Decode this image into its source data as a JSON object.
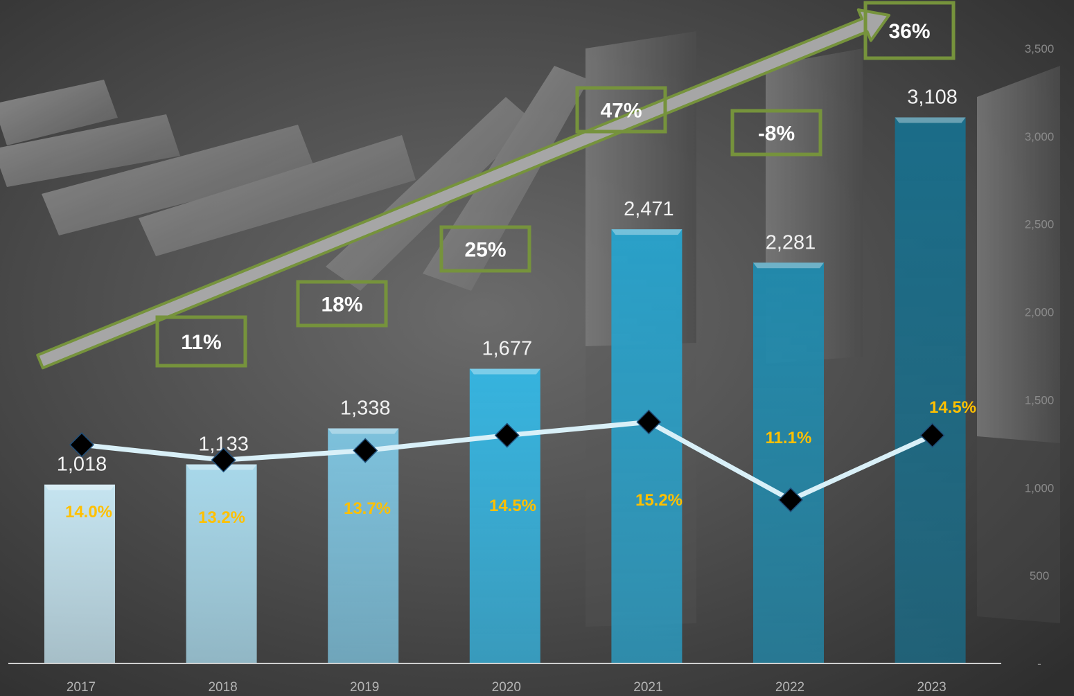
{
  "chart_data": {
    "type": "bar",
    "categories": [
      "2017",
      "2018",
      "2019",
      "2020",
      "2021",
      "2022",
      "2023"
    ],
    "bars": {
      "values": [
        1018,
        1133,
        1338,
        1677,
        2471,
        2281,
        3108
      ],
      "labels": [
        "1,018",
        "1,133",
        "1,338",
        "1,677",
        "2,471",
        "2,281",
        "3,108"
      ]
    },
    "line": {
      "values": [
        14.0,
        13.2,
        13.7,
        14.5,
        15.2,
        11.1,
        14.5
      ],
      "labels": [
        "14.0%",
        "13.2%",
        "13.7%",
        "14.5%",
        "15.2%",
        "11.1%",
        "14.5%"
      ],
      "color": "#d9f0f8"
    },
    "growth": {
      "labels": [
        "11%",
        "18%",
        "25%",
        "47%",
        "-8%",
        "36%"
      ],
      "box_color": "#76933c",
      "arrow_color": "#a6a6a6"
    },
    "y_axis": {
      "ylim": [
        0,
        3500
      ],
      "ticks": [
        "-",
        "500",
        "1,000",
        "1,500",
        "2,000",
        "2,500",
        "3,000",
        "3,500"
      ],
      "position": "right"
    },
    "colors": {
      "label_percent": "#ffc000",
      "bar_gradient": [
        "#c5e4f0",
        "#a8d8ea",
        "#7dc1dc",
        "#36b3de",
        "#2aa0c8",
        "#2289ab",
        "#1b6d89"
      ]
    }
  }
}
